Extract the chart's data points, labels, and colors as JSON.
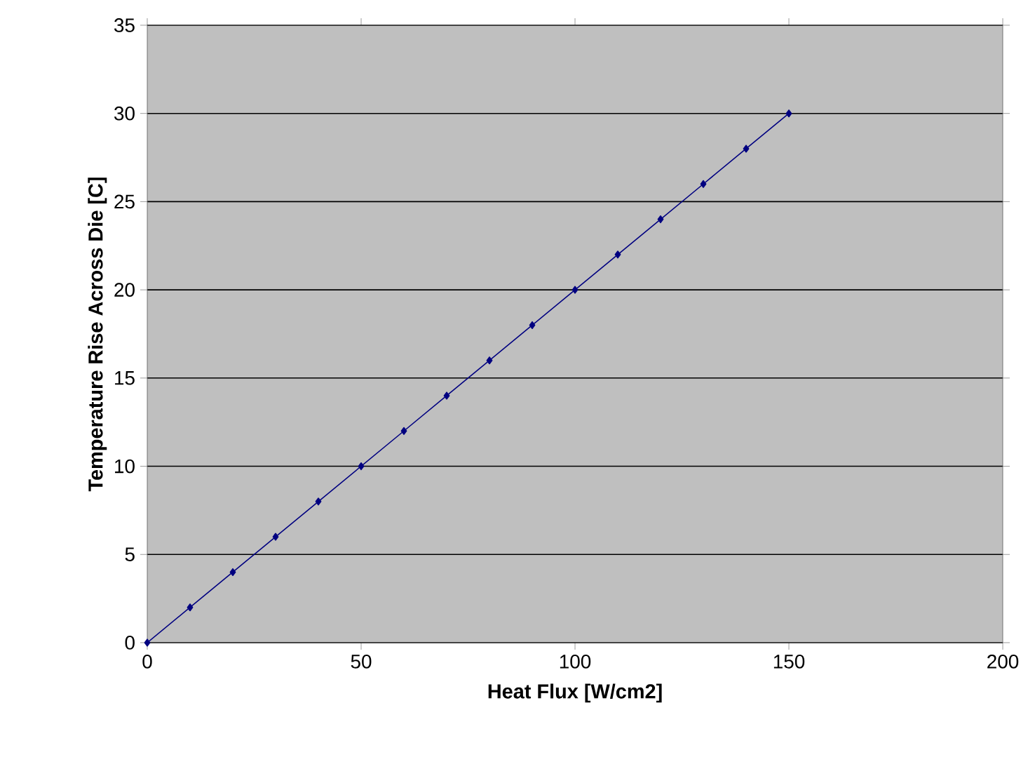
{
  "chart_data": {
    "type": "line",
    "xlabel": "Heat Flux [W/cm2]",
    "ylabel": "Temperature Rise Across Die [C]",
    "x": [
      0,
      10,
      20,
      30,
      40,
      50,
      60,
      70,
      80,
      90,
      100,
      110,
      120,
      130,
      140,
      150
    ],
    "series": [
      {
        "color": "#000080",
        "values": [
          0,
          2,
          4,
          6,
          8,
          10,
          12,
          14,
          16,
          18,
          20,
          22,
          24,
          26,
          28,
          30
        ]
      }
    ],
    "xlim": [
      0,
      200
    ],
    "xticks": [
      0,
      50,
      100,
      150,
      200
    ],
    "ylim": [
      0,
      35
    ],
    "yticks": [
      0,
      5,
      10,
      15,
      20,
      25,
      30,
      35
    ],
    "grid": "y",
    "marker": "diamond",
    "line_style": "solid"
  }
}
